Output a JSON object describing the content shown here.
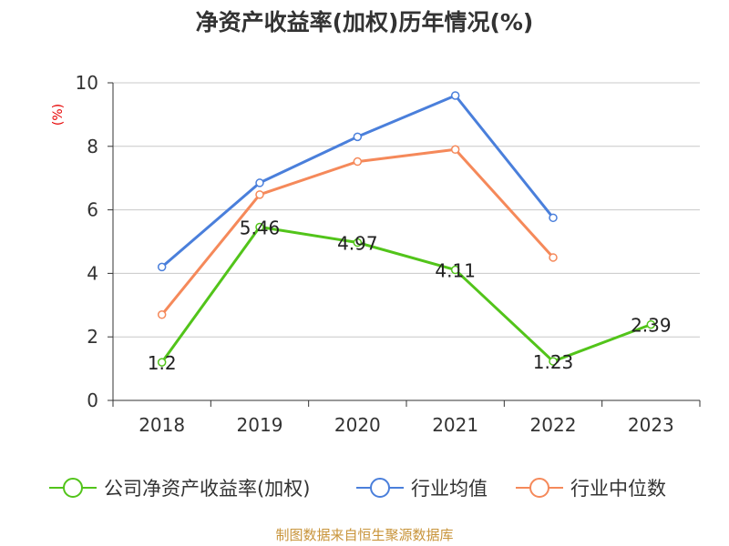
{
  "chart_data": {
    "type": "line",
    "title": "净资产收益率(加权)历年情况(%)",
    "unit_label": "(%)",
    "xlabel": "",
    "ylabel": "",
    "categories": [
      "2018",
      "2019",
      "2020",
      "2021",
      "2022",
      "2023"
    ],
    "ylim": [
      0,
      10
    ],
    "yticks": [
      0,
      2,
      4,
      6,
      8,
      10
    ],
    "grid": true,
    "legend_position": "bottom",
    "series": [
      {
        "name": "公司净资产收益率(加权)",
        "color": "#52c41a",
        "values": [
          1.2,
          5.46,
          4.97,
          4.11,
          1.23,
          2.39
        ],
        "labels": [
          "1.2",
          "5.46",
          "4.97",
          "4.11",
          "1.23",
          "2.39"
        ]
      },
      {
        "name": "行业均值",
        "color": "#4a7fdb",
        "values": [
          4.2,
          6.85,
          8.3,
          9.6,
          5.75,
          null
        ]
      },
      {
        "name": "行业中位数",
        "color": "#f5895a",
        "values": [
          2.7,
          6.48,
          7.52,
          7.9,
          4.5,
          null
        ]
      }
    ]
  },
  "source": "制图数据来自恒生聚源数据库"
}
